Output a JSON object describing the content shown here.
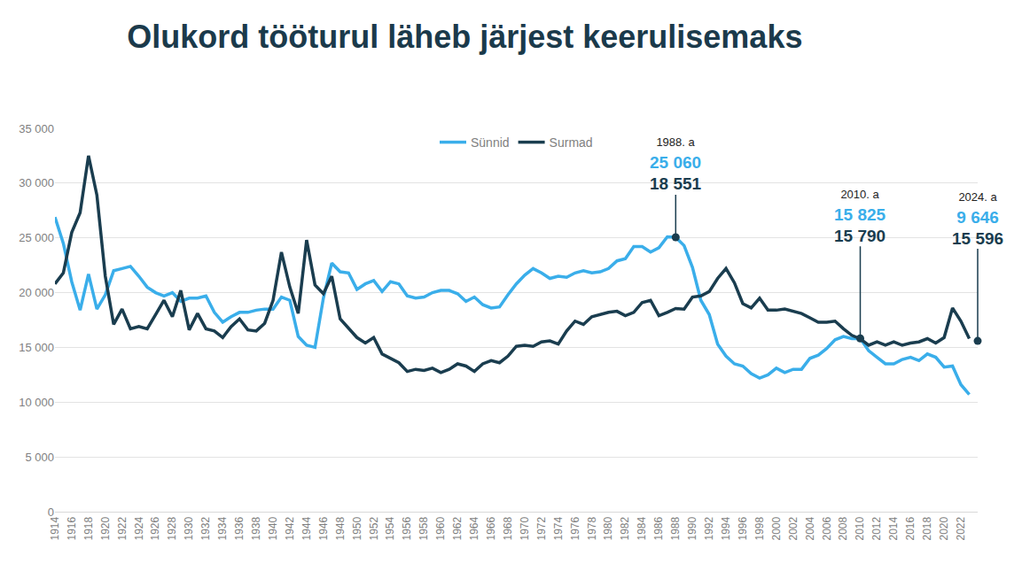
{
  "chart_data": {
    "type": "line",
    "title": "Olukord tööturul läheb järjest keerulisemaks",
    "x": [
      1914,
      1915,
      1916,
      1917,
      1918,
      1919,
      1920,
      1921,
      1922,
      1923,
      1924,
      1925,
      1926,
      1927,
      1928,
      1929,
      1930,
      1931,
      1932,
      1933,
      1934,
      1935,
      1936,
      1937,
      1938,
      1939,
      1940,
      1941,
      1942,
      1943,
      1944,
      1945,
      1946,
      1947,
      1948,
      1949,
      1950,
      1951,
      1952,
      1953,
      1954,
      1955,
      1956,
      1957,
      1958,
      1959,
      1960,
      1961,
      1962,
      1963,
      1964,
      1965,
      1966,
      1967,
      1968,
      1969,
      1970,
      1971,
      1972,
      1973,
      1974,
      1975,
      1976,
      1977,
      1978,
      1979,
      1980,
      1981,
      1982,
      1983,
      1984,
      1985,
      1986,
      1987,
      1988,
      1989,
      1990,
      1991,
      1992,
      1993,
      1994,
      1995,
      1996,
      1997,
      1998,
      1999,
      2000,
      2001,
      2002,
      2003,
      2004,
      2005,
      2006,
      2007,
      2008,
      2009,
      2010,
      2011,
      2012,
      2013,
      2014,
      2015,
      2016,
      2017,
      2018,
      2019,
      2020,
      2021,
      2022,
      2023
    ],
    "series": [
      {
        "name": "Sünnid",
        "color": "#3aaeea",
        "values": [
          26900,
          24500,
          21000,
          18400,
          21700,
          18500,
          19800,
          22000,
          22200,
          22400,
          21500,
          20500,
          20000,
          19700,
          20000,
          19200,
          19500,
          19500,
          19700,
          18200,
          17300,
          17800,
          18200,
          18200,
          18400,
          18500,
          18500,
          19600,
          19300,
          16000,
          15200,
          15000,
          19500,
          22700,
          21900,
          21800,
          20300,
          20800,
          21100,
          20100,
          21000,
          20800,
          19700,
          19500,
          19600,
          20000,
          20200,
          20200,
          19900,
          19200,
          19600,
          18900,
          18600,
          18700,
          19800,
          20800,
          21600,
          22200,
          21800,
          21300,
          21500,
          21400,
          21800,
          22000,
          21800,
          21900,
          22200,
          22900,
          23100,
          24200,
          24200,
          23700,
          24100,
          25100,
          25060,
          24300,
          22300,
          19300,
          18000,
          15300,
          14200,
          13500,
          13300,
          12600,
          12200,
          12500,
          13100,
          12700,
          13000,
          13000,
          14000,
          14300,
          14900,
          15700,
          16000,
          15800,
          15825,
          14700,
          14100,
          13500,
          13500,
          13900,
          14100,
          13800,
          14400,
          14100,
          13200,
          13300,
          11600,
          10700
        ]
      },
      {
        "name": "Surmad",
        "color": "#1a3d4f",
        "values": [
          20800,
          21800,
          25500,
          27300,
          32500,
          28900,
          21500,
          17100,
          18500,
          16700,
          16900,
          16700,
          18000,
          19300,
          17800,
          20200,
          16600,
          18100,
          16700,
          16500,
          15900,
          16900,
          17600,
          16600,
          16500,
          17200,
          19300,
          23700,
          20500,
          18100,
          24800,
          20700,
          19900,
          21500,
          17600,
          16800,
          15900,
          15400,
          15900,
          14400,
          14000,
          13600,
          12800,
          13000,
          12900,
          13100,
          12700,
          13000,
          13500,
          13300,
          12800,
          13500,
          13800,
          13600,
          14200,
          15100,
          15200,
          15100,
          15500,
          15600,
          15300,
          16500,
          17400,
          17100,
          17800,
          18000,
          18200,
          18300,
          17900,
          18200,
          19100,
          19300,
          17900,
          18200,
          18551,
          18500,
          19600,
          19700,
          20100,
          21300,
          22200,
          20900,
          19000,
          18600,
          19500,
          18400,
          18400,
          18500,
          18300,
          18100,
          17700,
          17300,
          17300,
          17400,
          16700,
          16100,
          15790,
          15200,
          15500,
          15200,
          15500,
          15200,
          15400,
          15500,
          15800,
          15400,
          15900,
          18600,
          17400,
          15800
        ]
      }
    ],
    "annotations": [
      {
        "x": 1988,
        "label": "1988. a",
        "values": [
          25060,
          18551
        ],
        "value_labels": [
          "25 060",
          "18 551"
        ]
      },
      {
        "x": 2010,
        "label": "2010. a",
        "values": [
          15825,
          15790
        ],
        "value_labels": [
          "15 825",
          "15 790"
        ]
      },
      {
        "x": 2024,
        "label": "2024. a",
        "values": [
          9646,
          15596
        ],
        "value_labels": [
          "9 646",
          "15 596"
        ]
      }
    ],
    "xlim": [
      1914,
      2024
    ],
    "xticks": [
      1914,
      1916,
      1918,
      1920,
      1922,
      1924,
      1926,
      1928,
      1930,
      1932,
      1934,
      1936,
      1938,
      1940,
      1942,
      1944,
      1946,
      1948,
      1950,
      1952,
      1954,
      1956,
      1958,
      1960,
      1962,
      1964,
      1966,
      1968,
      1970,
      1972,
      1974,
      1976,
      1978,
      1980,
      1982,
      1984,
      1986,
      1988,
      1990,
      1992,
      1994,
      1996,
      1998,
      2000,
      2002,
      2004,
      2006,
      2008,
      2010,
      2012,
      2014,
      2016,
      2018,
      2020,
      2022
    ],
    "ylim": [
      0,
      35000
    ],
    "yticks": [
      0,
      {
        "value": 5000,
        "label": "5 000"
      },
      {
        "value": 10000,
        "label": "10 000"
      },
      {
        "value": 15000,
        "label": "15 000"
      },
      {
        "value": 20000,
        "label": "20 000"
      },
      {
        "value": 25000,
        "label": "25 000"
      },
      {
        "value": 30000,
        "label": "30 000"
      },
      {
        "value": 35000,
        "label": "35 000"
      }
    ],
    "grid": true,
    "legend": "top"
  }
}
